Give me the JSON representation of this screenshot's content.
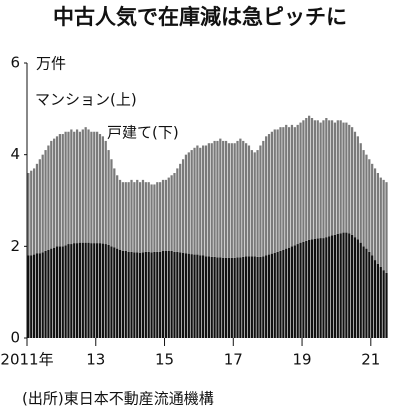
{
  "chart_data": {
    "type": "stacked_bar",
    "title": "中古人気で在庫減は急ピッチに",
    "y_unit": "万件",
    "source": "(出所)東日本不動産流通機構",
    "categories": [
      "2011年",
      null,
      null,
      null,
      null,
      null,
      null,
      null,
      null,
      null,
      null,
      null,
      null,
      null,
      null,
      null,
      null,
      null,
      null,
      null,
      null,
      null,
      null,
      null,
      "13",
      null,
      null,
      null,
      null,
      null,
      null,
      null,
      null,
      null,
      null,
      null,
      null,
      null,
      null,
      null,
      null,
      null,
      null,
      null,
      null,
      null,
      null,
      null,
      "15",
      null,
      null,
      null,
      null,
      null,
      null,
      null,
      null,
      null,
      null,
      null,
      null,
      null,
      null,
      null,
      null,
      null,
      null,
      null,
      null,
      null,
      null,
      null,
      "17",
      null,
      null,
      null,
      null,
      null,
      null,
      null,
      null,
      null,
      null,
      null,
      null,
      null,
      null,
      null,
      null,
      null,
      null,
      null,
      null,
      null,
      null,
      null,
      "19",
      null,
      null,
      null,
      null,
      null,
      null,
      null,
      null,
      null,
      null,
      null,
      null,
      null,
      null,
      null,
      null,
      null,
      null,
      null,
      null,
      null,
      null,
      null,
      "21",
      null,
      null,
      null,
      null,
      null
    ],
    "series": [
      {
        "name": "戸建て(下)",
        "color": "#111111",
        "values": [
          1.8,
          1.8,
          1.82,
          1.85,
          1.85,
          1.87,
          1.9,
          1.92,
          1.95,
          1.97,
          2.0,
          2.0,
          2.0,
          2.02,
          2.05,
          2.05,
          2.07,
          2.07,
          2.08,
          2.08,
          2.08,
          2.08,
          2.07,
          2.07,
          2.07,
          2.07,
          2.06,
          2.05,
          2.03,
          2.0,
          1.98,
          1.95,
          1.92,
          1.9,
          1.9,
          1.88,
          1.88,
          1.87,
          1.87,
          1.86,
          1.87,
          1.88,
          1.88,
          1.87,
          1.88,
          1.88,
          1.88,
          1.9,
          1.9,
          1.9,
          1.9,
          1.88,
          1.88,
          1.87,
          1.86,
          1.85,
          1.84,
          1.83,
          1.82,
          1.82,
          1.8,
          1.8,
          1.78,
          1.78,
          1.77,
          1.77,
          1.76,
          1.76,
          1.75,
          1.75,
          1.75,
          1.75,
          1.75,
          1.76,
          1.76,
          1.77,
          1.78,
          1.78,
          1.78,
          1.78,
          1.77,
          1.77,
          1.78,
          1.8,
          1.82,
          1.84,
          1.86,
          1.88,
          1.9,
          1.92,
          1.95,
          1.97,
          2.0,
          2.02,
          2.05,
          2.08,
          2.1,
          2.12,
          2.14,
          2.15,
          2.16,
          2.17,
          2.18,
          2.18,
          2.2,
          2.22,
          2.24,
          2.25,
          2.27,
          2.28,
          2.3,
          2.3,
          2.28,
          2.25,
          2.2,
          2.15,
          2.08,
          2.0,
          1.95,
          1.88,
          1.8,
          1.7,
          1.62,
          1.55,
          1.48,
          1.42
        ]
      },
      {
        "name": "マンション(上)",
        "color": "#7a7a7a",
        "values": [
          1.8,
          1.85,
          1.88,
          1.95,
          2.05,
          2.13,
          2.2,
          2.28,
          2.35,
          2.38,
          2.4,
          2.45,
          2.45,
          2.48,
          2.45,
          2.5,
          2.43,
          2.48,
          2.42,
          2.47,
          2.52,
          2.47,
          2.43,
          2.43,
          2.43,
          2.38,
          2.34,
          2.25,
          2.07,
          1.9,
          1.72,
          1.6,
          1.53,
          1.5,
          1.5,
          1.52,
          1.57,
          1.53,
          1.58,
          1.54,
          1.58,
          1.52,
          1.52,
          1.48,
          1.47,
          1.52,
          1.52,
          1.55,
          1.55,
          1.6,
          1.65,
          1.72,
          1.82,
          1.93,
          2.04,
          2.15,
          2.21,
          2.27,
          2.33,
          2.38,
          2.35,
          2.4,
          2.42,
          2.47,
          2.48,
          2.53,
          2.54,
          2.59,
          2.55,
          2.55,
          2.5,
          2.5,
          2.5,
          2.54,
          2.59,
          2.53,
          2.47,
          2.42,
          2.32,
          2.27,
          2.33,
          2.43,
          2.52,
          2.6,
          2.63,
          2.66,
          2.69,
          2.67,
          2.7,
          2.68,
          2.7,
          2.63,
          2.65,
          2.58,
          2.6,
          2.62,
          2.65,
          2.68,
          2.71,
          2.65,
          2.59,
          2.58,
          2.52,
          2.57,
          2.6,
          2.53,
          2.51,
          2.45,
          2.48,
          2.47,
          2.4,
          2.4,
          2.37,
          2.35,
          2.3,
          2.25,
          2.17,
          2.1,
          2.05,
          2.02,
          2.0,
          2.0,
          1.98,
          1.95,
          1.97,
          1.98
        ]
      }
    ],
    "ylim": [
      0,
      6
    ],
    "yticks": [
      0,
      2,
      4,
      6
    ]
  }
}
